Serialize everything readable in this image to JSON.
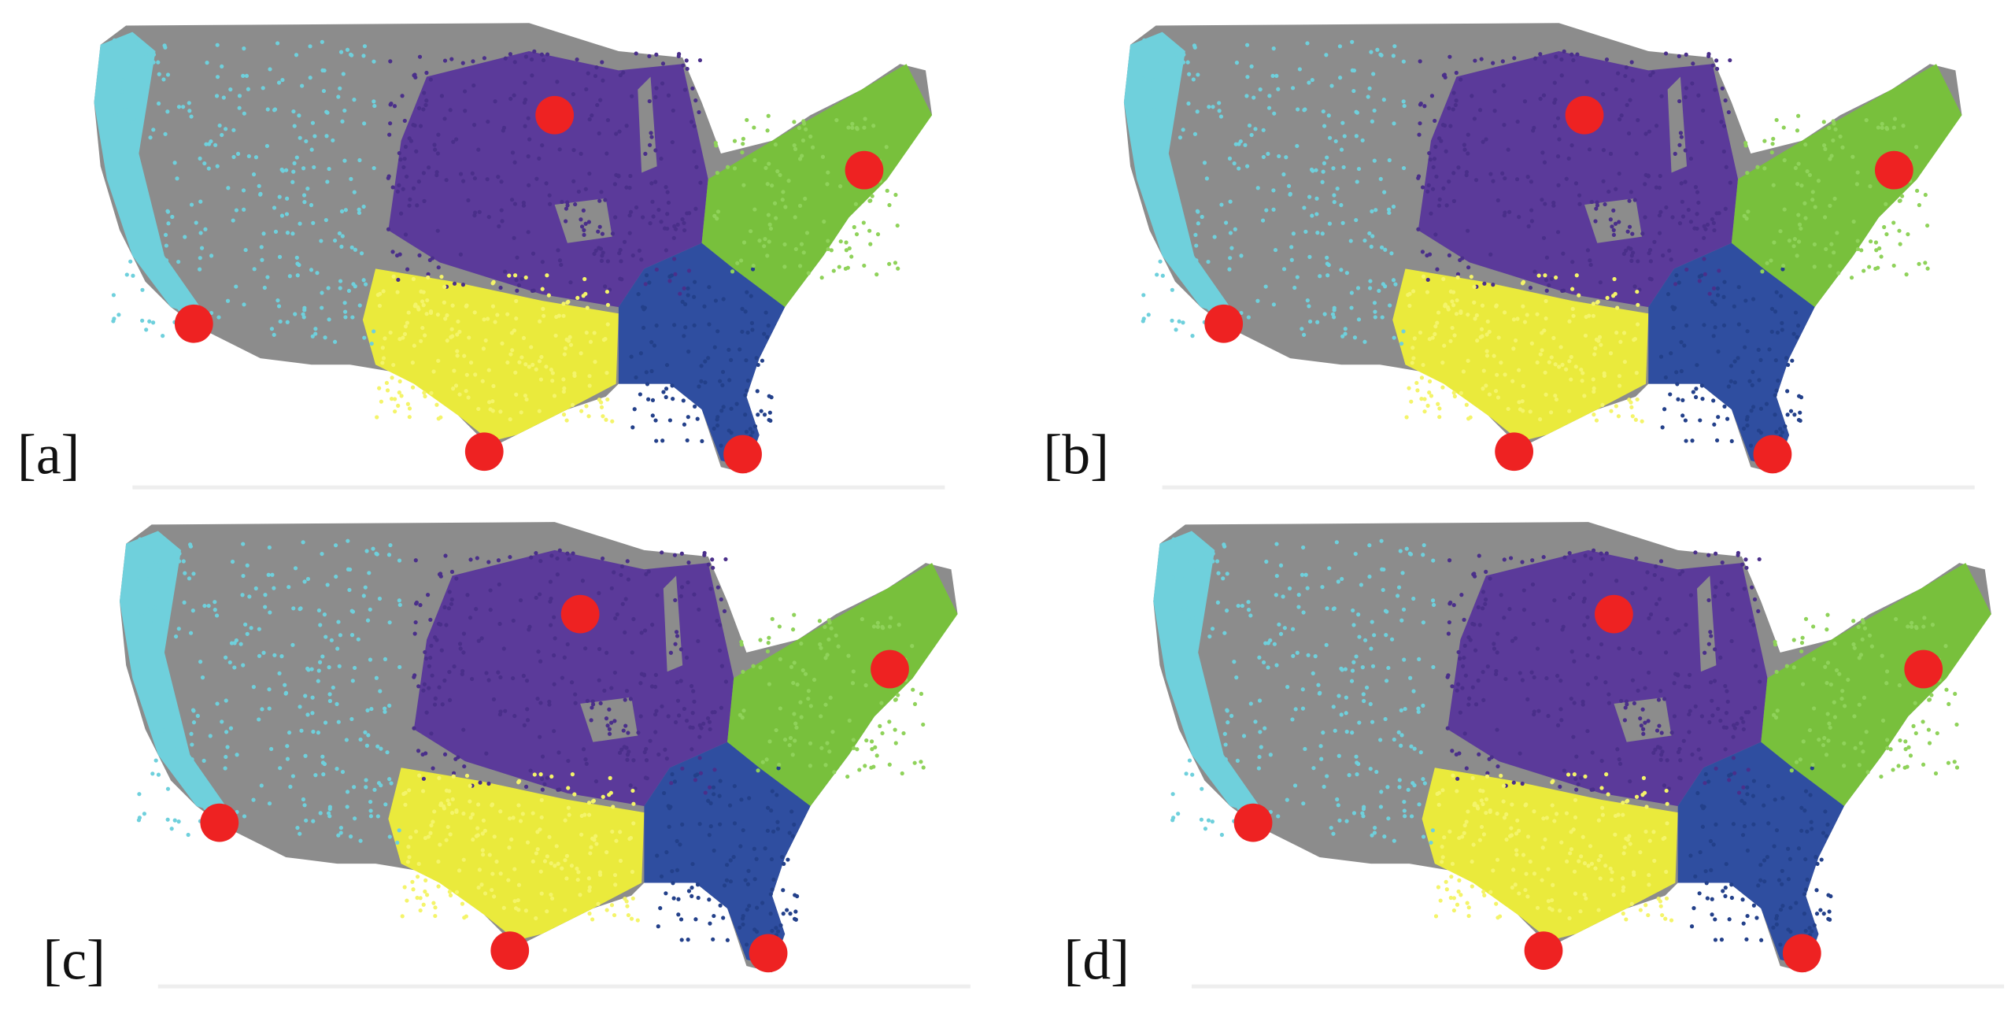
{
  "panels": [
    {
      "label": "[a]"
    },
    {
      "label": "[b]"
    },
    {
      "label": "[c]"
    },
    {
      "label": "[d]"
    }
  ]
}
